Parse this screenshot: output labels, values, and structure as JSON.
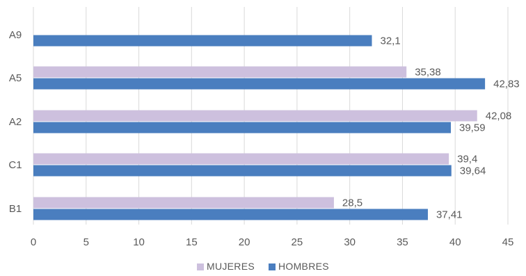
{
  "chart_data": {
    "type": "bar",
    "orientation": "horizontal",
    "title": "",
    "xlabel": "",
    "ylabel": "",
    "categories": [
      "A9",
      "A5",
      "A2",
      "C1",
      "B1"
    ],
    "series": [
      {
        "name": "MUJERES",
        "color": "#cdc0de",
        "values": [
          null,
          35.38,
          42.08,
          39.4,
          28.5
        ],
        "labels": [
          null,
          "35,38",
          "42,08",
          "39,4",
          "28,5"
        ]
      },
      {
        "name": "HOMBRES",
        "color": "#4a7ebf",
        "values": [
          32.1,
          42.83,
          39.59,
          39.64,
          37.41
        ],
        "labels": [
          "32,1",
          "42,83",
          "39,59",
          "39,64",
          "37,41"
        ]
      }
    ],
    "xlim": [
      0,
      45
    ],
    "xticks": [
      0,
      5,
      10,
      15,
      20,
      25,
      30,
      35,
      40,
      45
    ],
    "grid": "vertical",
    "legend_position": "bottom-center"
  }
}
